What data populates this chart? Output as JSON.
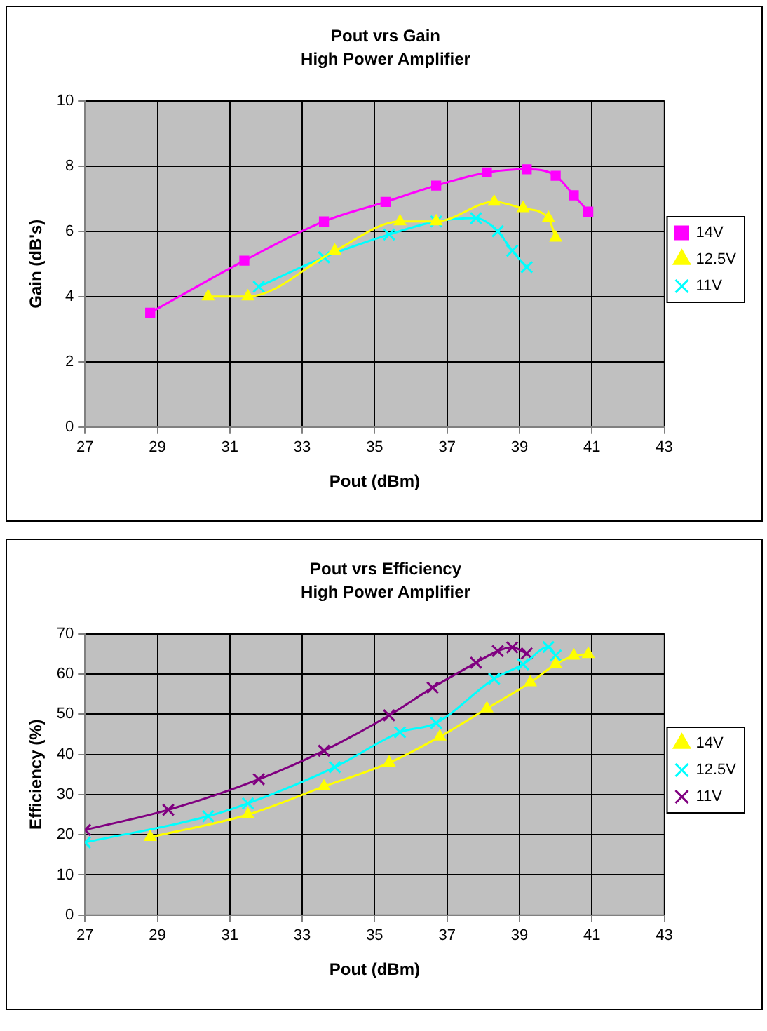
{
  "chart_data": [
    {
      "type": "line",
      "title": "Pout vrs Gain",
      "subtitle": "High Power Amplifier",
      "xlabel": "Pout (dBm)",
      "ylabel": "Gain (dB's)",
      "xlim": [
        27,
        43
      ],
      "xticks": [
        27,
        29,
        31,
        33,
        35,
        37,
        39,
        41,
        43
      ],
      "ylim": [
        0,
        10
      ],
      "yticks": [
        0,
        2,
        4,
        6,
        8,
        10
      ],
      "grid": true,
      "legend": "right",
      "series": [
        {
          "name": "14V",
          "color": "#ff00ff",
          "marker": "square",
          "x": [
            28.8,
            31.4,
            33.6,
            35.3,
            36.7,
            38.1,
            39.2,
            40.0,
            40.5,
            40.9
          ],
          "values": [
            3.5,
            5.1,
            6.3,
            6.9,
            7.4,
            7.8,
            7.9,
            7.7,
            7.1,
            6.6
          ]
        },
        {
          "name": "12.5V",
          "color": "#ffff00",
          "marker": "triangle",
          "x": [
            30.4,
            31.5,
            33.9,
            35.7,
            36.7,
            38.3,
            39.1,
            39.8,
            40.0
          ],
          "values": [
            4.0,
            4.0,
            5.4,
            6.3,
            6.3,
            6.9,
            6.7,
            6.4,
            5.8
          ]
        },
        {
          "name": "11V",
          "color": "#00ffff",
          "marker": "cross",
          "x": [
            31.8,
            33.6,
            35.4,
            36.7,
            37.8,
            38.4,
            38.8,
            39.2
          ],
          "values": [
            4.3,
            5.2,
            5.9,
            6.3,
            6.4,
            6.0,
            5.4,
            4.9
          ]
        }
      ]
    },
    {
      "type": "line",
      "title": "Pout vrs Efficiency",
      "subtitle": "High Power Amplifier",
      "xlabel": "Pout (dBm)",
      "ylabel": "Efficiency (%)",
      "xlim": [
        27,
        43
      ],
      "xticks": [
        27,
        29,
        31,
        33,
        35,
        37,
        39,
        41,
        43
      ],
      "ylim": [
        0,
        70
      ],
      "yticks": [
        0,
        10,
        20,
        30,
        40,
        50,
        60,
        70
      ],
      "grid": true,
      "legend": "right",
      "series": [
        {
          "name": "14V",
          "color": "#ffff00",
          "marker": "triangle",
          "x": [
            28.8,
            31.5,
            33.6,
            35.4,
            36.8,
            38.1,
            39.3,
            40.0,
            40.5,
            40.9
          ],
          "values": [
            19.4,
            25.0,
            32.0,
            37.9,
            44.4,
            51.4,
            57.9,
            62.4,
            64.5,
            64.9
          ]
        },
        {
          "name": "12.5V",
          "color": "#00ffff",
          "marker": "cross",
          "x": [
            27.0,
            30.4,
            31.5,
            33.9,
            35.7,
            36.7,
            38.3,
            39.1,
            39.8,
            40.0
          ],
          "values": [
            18.1,
            24.6,
            27.8,
            36.8,
            45.5,
            47.8,
            58.8,
            62.4,
            66.7,
            64.6
          ]
        },
        {
          "name": "11V",
          "color": "#800080",
          "marker": "cross",
          "x": [
            27.0,
            29.3,
            31.8,
            33.6,
            35.4,
            36.6,
            37.8,
            38.4,
            38.8,
            39.2
          ],
          "values": [
            21.2,
            26.2,
            33.8,
            40.9,
            49.7,
            56.6,
            62.8,
            65.7,
            66.6,
            65.1
          ]
        }
      ]
    }
  ]
}
